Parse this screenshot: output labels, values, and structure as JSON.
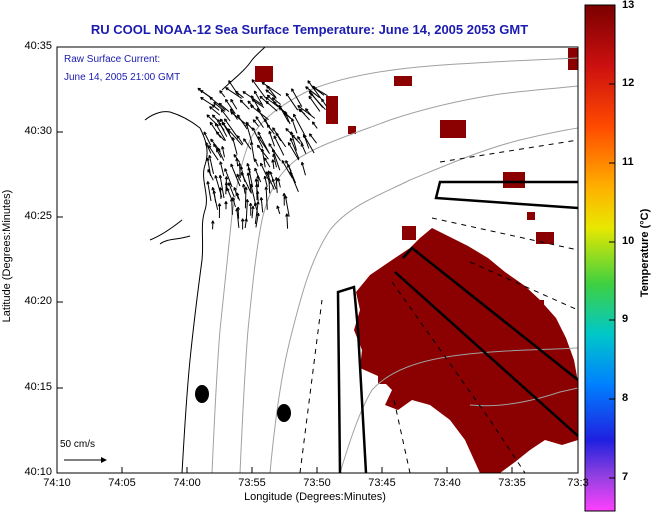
{
  "title": "RU COOL  NOAA-12  Sea Surface Temperature:  June 14, 2005 2053 GMT",
  "legend": {
    "line1": "Raw Surface Current:",
    "line2": "June 14, 2005 21:00 GMT"
  },
  "scale_label": "50 cm/s",
  "axes": {
    "xlabel": "Longitude (Degrees:Minutes)",
    "ylabel": "Latitude (Degrees:Minutes)",
    "lat_ticks": [
      "40:35",
      "40:30",
      "40:25",
      "40:20",
      "40:15",
      "40:10"
    ],
    "lon_ticks": [
      "74:10",
      "74:05",
      "74:00",
      "73:55",
      "73:50",
      "73:45",
      "73:40",
      "73:35",
      "73:3"
    ]
  },
  "colorbar": {
    "title": "Temperature (°C)",
    "ticks": [
      "13",
      "12",
      "11",
      "10",
      "9",
      "8",
      "7"
    ],
    "min": 6.3,
    "max": 13
  },
  "colors": {
    "title": "#1b1bb0",
    "sst": "#8b0000",
    "bathymetry": "#a0a0a0"
  }
}
